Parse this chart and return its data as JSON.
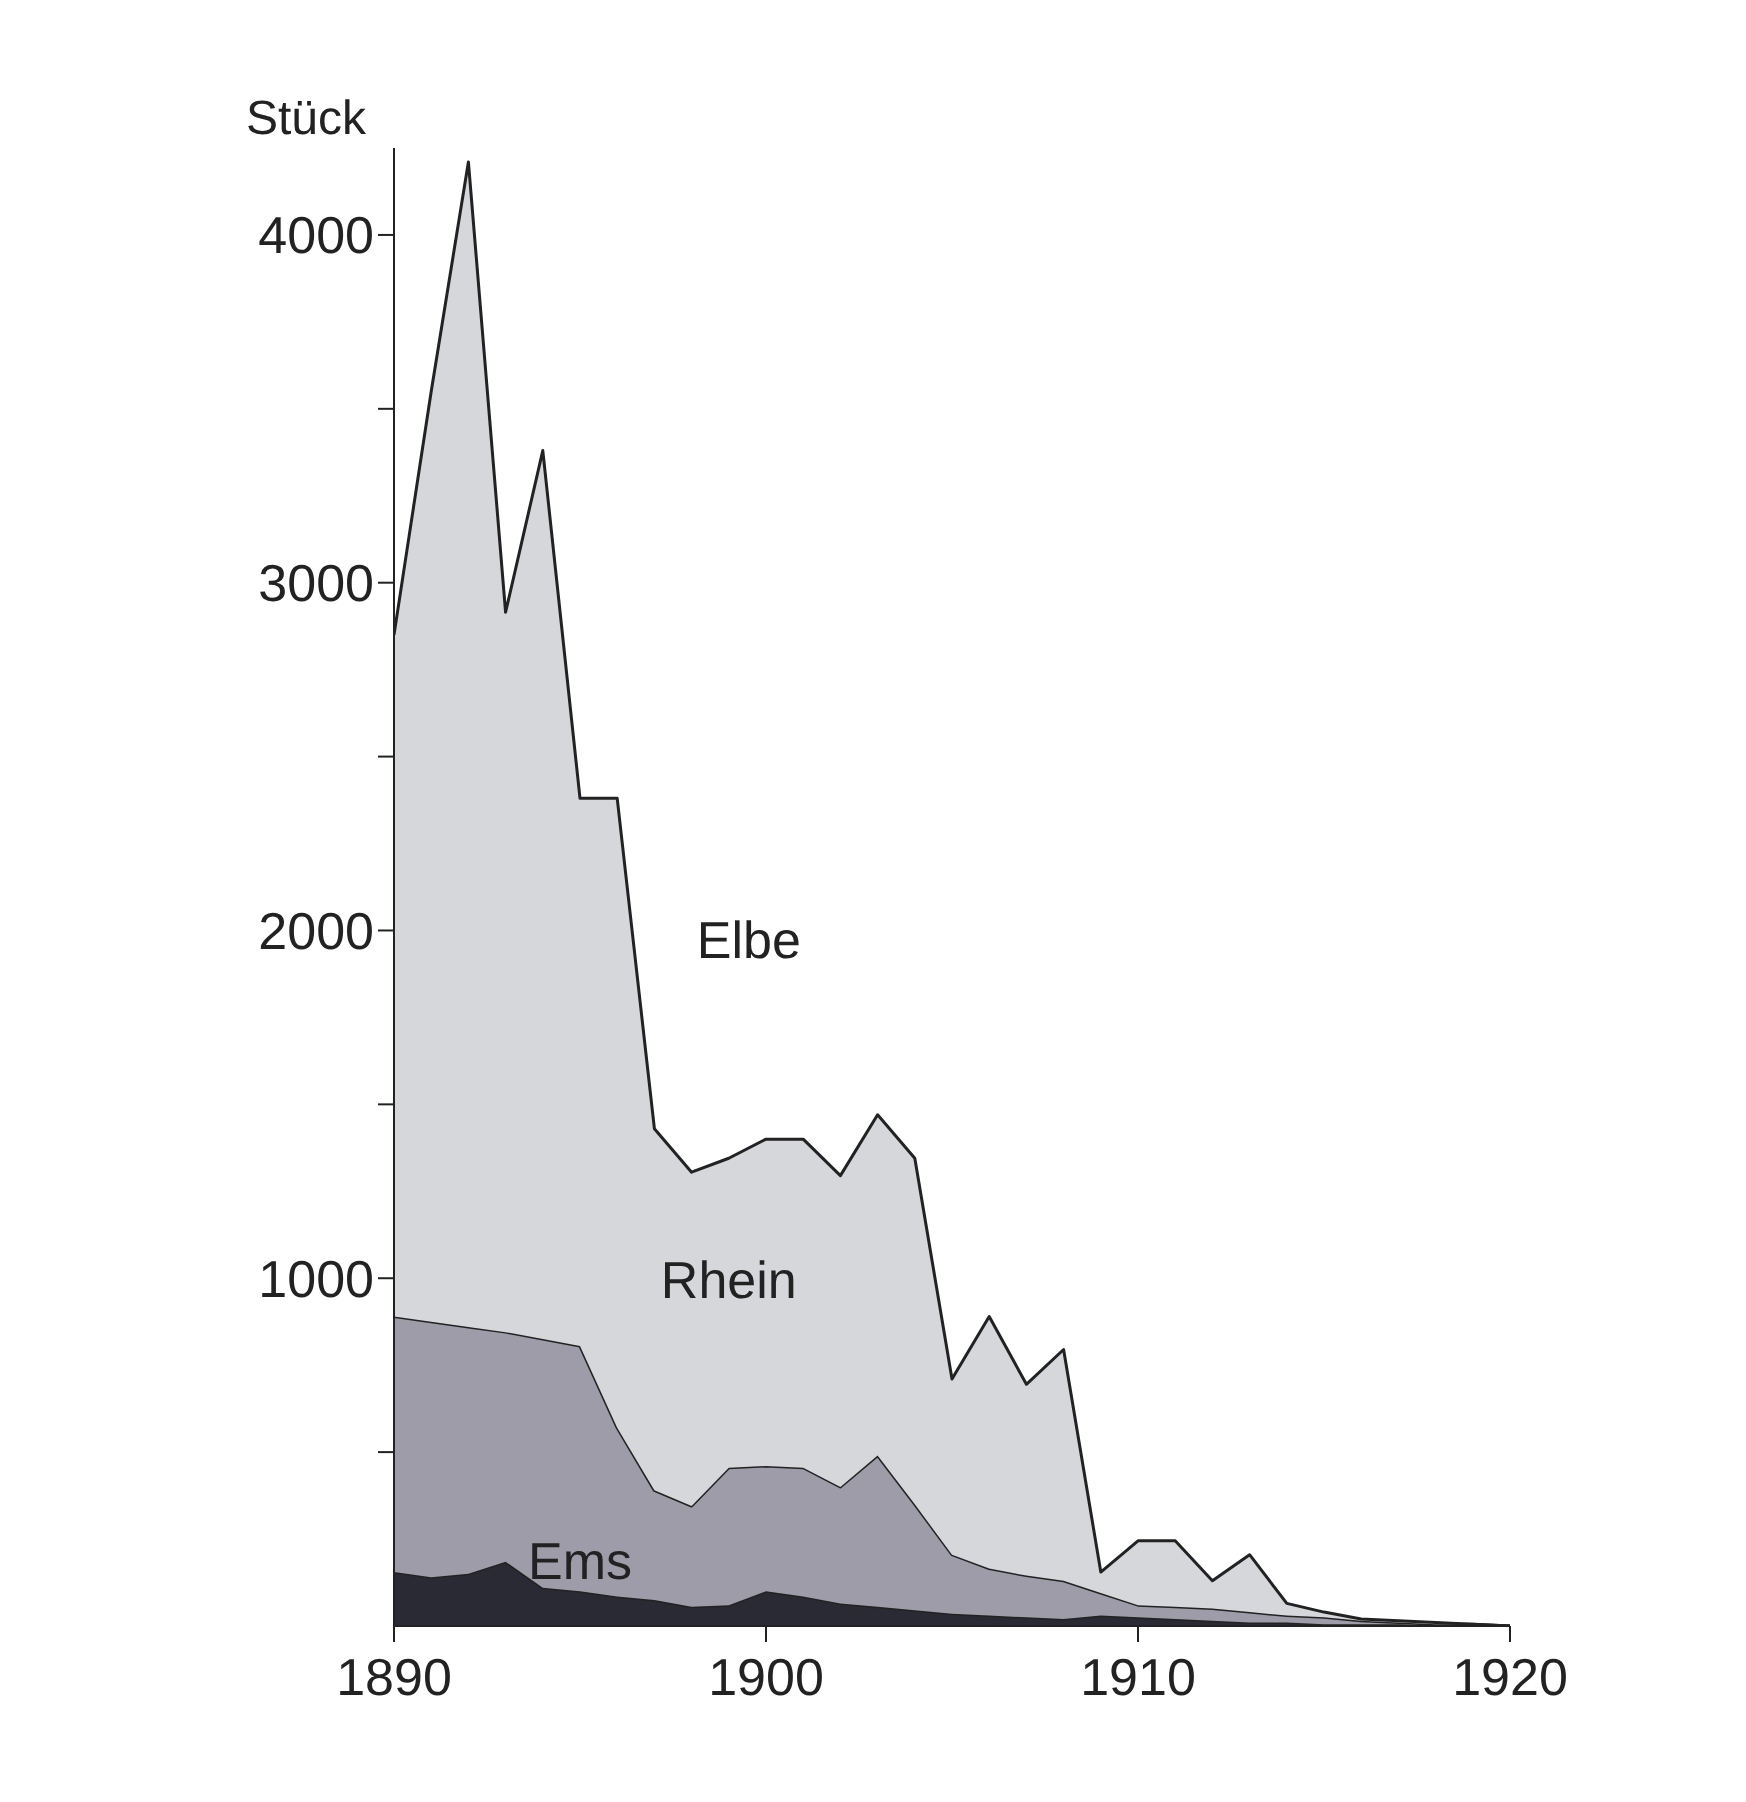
{
  "chart_data": {
    "type": "area",
    "ylabel": "Stück",
    "stacked": true,
    "x": [
      1890,
      1891,
      1892,
      1893,
      1894,
      1895,
      1896,
      1897,
      1898,
      1899,
      1900,
      1901,
      1902,
      1903,
      1904,
      1905,
      1906,
      1907,
      1908,
      1909,
      1910,
      1911,
      1912,
      1913,
      1914,
      1915,
      1916,
      1917,
      1918,
      1919,
      1920
    ],
    "xlim": [
      1890,
      1920
    ],
    "xticks": [
      1890,
      1900,
      1910,
      1920
    ],
    "ylim": [
      0,
      4250
    ],
    "yticks": [
      {
        "value": 500,
        "label": null
      },
      1000,
      {
        "value": 1500,
        "label": null
      },
      2000,
      {
        "value": 2500,
        "label": null
      },
      3000,
      {
        "value": 3500,
        "label": null
      },
      4000
    ],
    "series": [
      {
        "name": "Ems",
        "color": "#2a2a35",
        "values": [
          155,
          140,
          150,
          185,
          110,
          100,
          85,
          75,
          55,
          60,
          100,
          85,
          65,
          55,
          45,
          35,
          30,
          25,
          20,
          30,
          25,
          20,
          15,
          10,
          10,
          5,
          5,
          5,
          0,
          0,
          0
        ]
      },
      {
        "name": "Rhein",
        "color": "#9d9ca8",
        "values": [
          735,
          735,
          710,
          660,
          715,
          705,
          485,
          315,
          290,
          395,
          360,
          370,
          335,
          435,
          305,
          170,
          135,
          120,
          110,
          65,
          35,
          35,
          35,
          30,
          20,
          20,
          10,
          5,
          5,
          5,
          0
        ]
      },
      {
        "name": "Elbe",
        "color": "#d5d7da",
        "values": [
          1960,
          2675,
          3350,
          2070,
          2555,
          1575,
          1810,
          1040,
          960,
          890,
          940,
          945,
          895,
          980,
          995,
          505,
          725,
          550,
          665,
          60,
          185,
          190,
          80,
          165,
          35,
          15,
          5,
          5,
          5,
          0,
          0
        ]
      }
    ]
  }
}
